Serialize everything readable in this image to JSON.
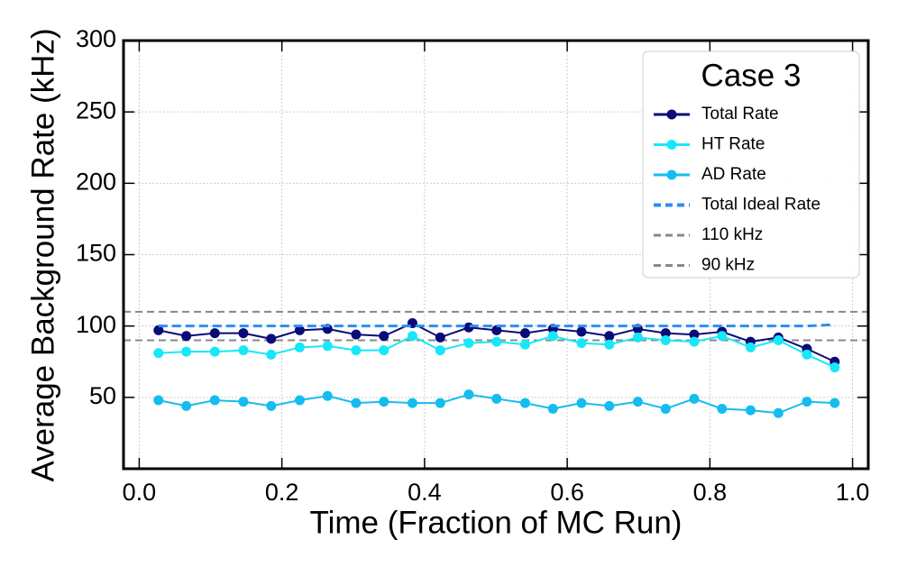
{
  "chart_data": {
    "type": "line",
    "xlabel": "Time (Fraction of MC Run)",
    "ylabel": "Average Background Rate (kHz)",
    "legend_title": "Case 3",
    "legend": "upper right",
    "grid": true,
    "xlim": [
      -0.022,
      1.022
    ],
    "ylim": [
      0,
      300
    ],
    "xticks": [
      {
        "value": 0,
        "label": "0.0"
      },
      0.2,
      0.4,
      0.6,
      0.8,
      {
        "value": 1,
        "label": "1.0"
      }
    ],
    "yticks": [
      50,
      100,
      150,
      200,
      250,
      300
    ],
    "x": [
      0.027,
      0.066,
      0.106,
      0.146,
      0.185,
      0.225,
      0.264,
      0.304,
      0.343,
      0.383,
      0.422,
      0.462,
      0.501,
      0.541,
      0.58,
      0.62,
      0.659,
      0.699,
      0.738,
      0.778,
      0.817,
      0.857,
      0.896,
      0.936,
      0.975
    ],
    "series": [
      {
        "name": "Total Rate",
        "color": "#0a0a78",
        "marker": true,
        "dashed": false,
        "values": [
          97,
          93,
          95,
          95,
          91,
          97,
          98,
          94,
          93,
          102,
          92,
          99,
          97,
          95,
          98,
          96,
          93,
          98,
          95,
          94,
          96,
          89,
          92,
          84,
          75
        ]
      },
      {
        "name": "HT Rate",
        "color": "#16e8f8",
        "marker": true,
        "dashed": false,
        "values": [
          81,
          82,
          82,
          83,
          80,
          85,
          86,
          83,
          83,
          93,
          83,
          88,
          89,
          87,
          93,
          88,
          87,
          92,
          90,
          89,
          93,
          85,
          90,
          80,
          71
        ]
      },
      {
        "name": "AD Rate",
        "color": "#14bcf0",
        "marker": true,
        "dashed": false,
        "values": [
          48,
          44,
          48,
          47,
          44,
          48,
          51,
          46,
          47,
          46,
          46,
          52,
          49,
          46,
          42,
          46,
          44,
          47,
          42,
          49,
          42,
          41,
          39,
          47,
          46
        ]
      },
      {
        "name": "Total Ideal Rate",
        "color": "#2b8ff0",
        "marker": false,
        "dashed": true,
        "values": [
          100,
          100,
          100,
          100,
          100,
          100,
          100,
          100,
          100,
          100,
          100,
          100,
          100,
          100,
          100,
          100,
          100,
          100,
          100,
          100,
          100,
          100,
          100,
          100,
          101
        ]
      }
    ],
    "hlines": [
      {
        "name": "110 kHz",
        "value": 110,
        "color": "#888888"
      },
      {
        "name": "90 kHz",
        "value": 90,
        "color": "#888888"
      }
    ]
  }
}
